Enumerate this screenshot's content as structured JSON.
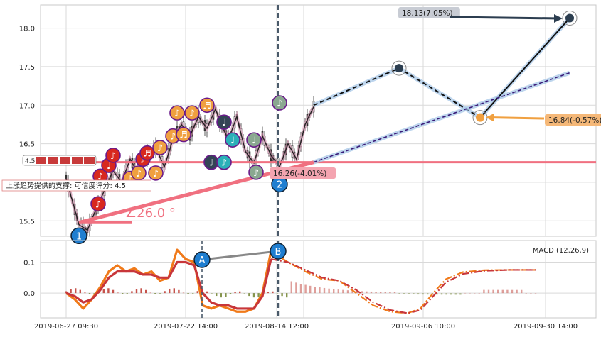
{
  "colors": {
    "grid": "#d9d9d9",
    "frame": "#c8c8c8",
    "support_line": "#f07080",
    "projection_line": "#a8c8e8",
    "dash_black": "#111111",
    "dash_purple": "#3a1a78",
    "note_orange": "#f0a040",
    "note_red": "#d8281e",
    "note_teal": "#2ab0b8",
    "note_dark": "#334455",
    "note_gray": "#8aa890",
    "marker_blue": "#1f7ed0",
    "macd_orange": "#f07a1a",
    "macd_red": "#c8363a",
    "hist_red": "#c04038",
    "hist_green": "#788838",
    "ab_connector": "#888888"
  },
  "chart_data": [
    {
      "type": "candlestick",
      "panel": "price",
      "x_ticks": [
        "2019-06-27 09:30",
        "2019-07-22 14:00",
        "2019-08-14 12:00",
        "2019-09-06 10:00",
        "2019-09-30 14:00"
      ],
      "y_ticks": [
        "15.5",
        "16.0",
        "16.5",
        "17.0",
        "17.5",
        "18.0"
      ],
      "ylim": [
        15.3,
        18.3
      ],
      "grid": true,
      "price_path": [
        [
          0,
          16.05
        ],
        [
          3,
          15.45
        ],
        [
          5,
          15.38
        ],
        [
          7,
          15.65
        ],
        [
          9,
          15.9
        ],
        [
          11,
          16.15
        ],
        [
          13,
          16.0
        ],
        [
          15,
          16.3
        ],
        [
          17,
          16.1
        ],
        [
          19,
          16.35
        ],
        [
          21,
          16.45
        ],
        [
          23,
          16.2
        ],
        [
          25,
          16.55
        ],
        [
          27,
          16.75
        ],
        [
          29,
          16.6
        ],
        [
          31,
          16.85
        ],
        [
          33,
          16.7
        ],
        [
          35,
          16.95
        ],
        [
          36,
          16.8
        ],
        [
          38,
          16.55
        ],
        [
          40,
          16.85
        ],
        [
          42,
          16.4
        ],
        [
          44,
          16.25
        ],
        [
          46,
          16.6
        ],
        [
          48,
          16.35
        ],
        [
          50,
          16.2
        ],
        [
          52,
          16.5
        ],
        [
          54,
          16.3
        ],
        [
          56,
          16.75
        ],
        [
          58,
          16.98
        ]
      ],
      "projection": {
        "points": [
          [
            58,
            17.0
          ],
          [
            78,
            17.48
          ],
          [
            97,
            16.84
          ],
          [
            118,
            18.13
          ]
        ],
        "support_trend_end": [
          118,
          17.42
        ],
        "support_level": 16.26
      },
      "support_line": {
        "level": 16.26,
        "angle_label": "∠26.0 °",
        "start": [
          3,
          15.45
        ],
        "end": [
          58,
          16.26
        ]
      },
      "markers": [
        {
          "label": "1",
          "x": 3,
          "y": 15.38
        },
        {
          "label": "2",
          "x": 50,
          "y": 16.05
        }
      ],
      "note_symbols": [
        "♪",
        "♬",
        "♩"
      ],
      "annotations": [
        {
          "text": "18.13(7.05%)",
          "x": 118,
          "y": 18.13
        },
        {
          "text": "16.84(-0.57%)",
          "x": 97,
          "y": 16.84
        },
        {
          "text": "16.26(-4.01%)",
          "x": 58,
          "y": 16.26
        }
      ],
      "support_label": "上涨趋势提供的支撑: 可信度评分: 4.5",
      "rating": {
        "score": "4.5",
        "stars": 5
      }
    },
    {
      "type": "line",
      "panel": "macd",
      "title": "MACD (12,26,9)",
      "y_ticks": [
        "0.0",
        "0.1"
      ],
      "ylim": [
        -0.08,
        0.17
      ],
      "grid": true,
      "markers": [
        {
          "label": "A",
          "x": 29,
          "y": 0.105
        },
        {
          "label": "B",
          "x": 46,
          "y": 0.135
        }
      ],
      "series": [
        {
          "name": "",
          "style": "solid-orange",
          "values": [
            [
              0,
              0.0
            ],
            [
              2,
              -0.02
            ],
            [
              4,
              -0.05
            ],
            [
              6,
              -0.02
            ],
            [
              8,
              0.02
            ],
            [
              10,
              0.07
            ],
            [
              12,
              0.09
            ],
            [
              14,
              0.07
            ],
            [
              16,
              0.08
            ],
            [
              18,
              0.06
            ],
            [
              20,
              0.07
            ],
            [
              22,
              0.04
            ],
            [
              24,
              0.05
            ],
            [
              26,
              0.14
            ],
            [
              28,
              0.11
            ],
            [
              30,
              0.1
            ],
            [
              32,
              -0.04
            ],
            [
              34,
              -0.05
            ],
            [
              36,
              -0.04
            ],
            [
              38,
              -0.05
            ],
            [
              40,
              -0.06
            ],
            [
              42,
              -0.06
            ],
            [
              44,
              -0.05
            ],
            [
              46,
              0.0
            ],
            [
              48,
              0.135
            ]
          ]
        },
        {
          "name": "",
          "style": "solid-red",
          "values": [
            [
              0,
              0.0
            ],
            [
              2,
              -0.01
            ],
            [
              4,
              -0.03
            ],
            [
              6,
              -0.02
            ],
            [
              8,
              0.01
            ],
            [
              10,
              0.05
            ],
            [
              12,
              0.07
            ],
            [
              14,
              0.07
            ],
            [
              16,
              0.07
            ],
            [
              18,
              0.06
            ],
            [
              20,
              0.06
            ],
            [
              22,
              0.05
            ],
            [
              24,
              0.05
            ],
            [
              26,
              0.1
            ],
            [
              28,
              0.1
            ],
            [
              30,
              0.09
            ],
            [
              32,
              0.0
            ],
            [
              34,
              -0.03
            ],
            [
              36,
              -0.04
            ],
            [
              38,
              -0.04
            ],
            [
              40,
              -0.05
            ],
            [
              42,
              -0.05
            ],
            [
              44,
              -0.05
            ],
            [
              46,
              -0.01
            ],
            [
              48,
              0.11
            ]
          ]
        },
        {
          "name": "",
          "style": "dashdot-orange",
          "values": [
            [
              48,
              0.135
            ],
            [
              52,
              0.1
            ],
            [
              56,
              0.07
            ],
            [
              60,
              0.045
            ],
            [
              64,
              0.04
            ],
            [
              68,
              0.0
            ],
            [
              72,
              -0.04
            ],
            [
              76,
              -0.06
            ],
            [
              80,
              -0.065
            ],
            [
              83,
              -0.05
            ],
            [
              86,
              0.0
            ],
            [
              89,
              0.045
            ],
            [
              93,
              0.068
            ],
            [
              98,
              0.074
            ],
            [
              104,
              0.075
            ],
            [
              110,
              0.075
            ]
          ]
        },
        {
          "name": "",
          "style": "dashdot-red",
          "values": [
            [
              48,
              0.11
            ],
            [
              52,
              0.1
            ],
            [
              56,
              0.075
            ],
            [
              60,
              0.05
            ],
            [
              64,
              0.04
            ],
            [
              68,
              0.01
            ],
            [
              72,
              -0.03
            ],
            [
              76,
              -0.055
            ],
            [
              80,
              -0.065
            ],
            [
              83,
              -0.055
            ],
            [
              86,
              -0.01
            ],
            [
              89,
              0.035
            ],
            [
              93,
              0.062
            ],
            [
              98,
              0.072
            ],
            [
              104,
              0.075
            ],
            [
              110,
              0.075
            ]
          ]
        }
      ]
    }
  ]
}
